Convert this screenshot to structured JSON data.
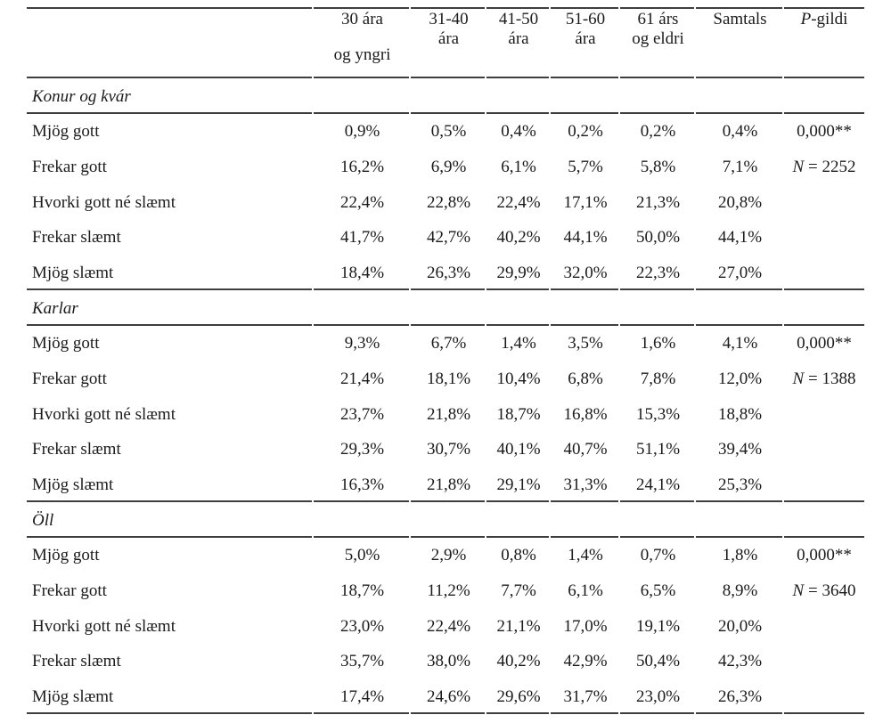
{
  "header": {
    "age_columns": [
      {
        "line1": "30 ára",
        "line2": "og yngri"
      },
      {
        "line1": "31-40",
        "line2": "ára"
      },
      {
        "line1": "41-50",
        "line2": "ára"
      },
      {
        "line1": "51-60",
        "line2": "ára"
      },
      {
        "line1": "61 árs",
        "line2": "og eldri"
      }
    ],
    "samtals": "Samtals",
    "p_italic": "P",
    "p_rest": "-gildi"
  },
  "sections": [
    {
      "title": "Konur og kvár",
      "p_value": "0,000**",
      "n_italic": "N",
      "n_rest": " = 2252",
      "rows": [
        {
          "label": "Mjög gott",
          "values": [
            "0,9%",
            "0,5%",
            "0,4%",
            "0,2%",
            "0,2%",
            "0,4%"
          ]
        },
        {
          "label": "Frekar gott",
          "values": [
            "16,2%",
            "6,9%",
            "6,1%",
            "5,7%",
            "5,8%",
            "7,1%"
          ]
        },
        {
          "label": "Hvorki gott né slæmt",
          "values": [
            "22,4%",
            "22,8%",
            "22,4%",
            "17,1%",
            "21,3%",
            "20,8%"
          ]
        },
        {
          "label": "Frekar slæmt",
          "values": [
            "41,7%",
            "42,7%",
            "40,2%",
            "44,1%",
            "50,0%",
            "44,1%"
          ]
        },
        {
          "label": "Mjög slæmt",
          "values": [
            "18,4%",
            "26,3%",
            "29,9%",
            "32,0%",
            "22,3%",
            "27,0%"
          ]
        }
      ]
    },
    {
      "title": "Karlar",
      "p_value": "0,000**",
      "n_italic": "N",
      "n_rest": " = 1388",
      "rows": [
        {
          "label": "Mjög gott",
          "values": [
            "9,3%",
            "6,7%",
            "1,4%",
            "3,5%",
            "1,6%",
            "4,1%"
          ]
        },
        {
          "label": "Frekar gott",
          "values": [
            "21,4%",
            "18,1%",
            "10,4%",
            "6,8%",
            "7,8%",
            "12,0%"
          ]
        },
        {
          "label": "Hvorki gott né slæmt",
          "values": [
            "23,7%",
            "21,8%",
            "18,7%",
            "16,8%",
            "15,3%",
            "18,8%"
          ]
        },
        {
          "label": "Frekar slæmt",
          "values": [
            "29,3%",
            "30,7%",
            "40,1%",
            "40,7%",
            "51,1%",
            "39,4%"
          ]
        },
        {
          "label": "Mjög slæmt",
          "values": [
            "16,3%",
            "21,8%",
            "29,1%",
            "31,3%",
            "24,1%",
            "25,3%"
          ]
        }
      ]
    },
    {
      "title": "Öll",
      "p_value": "0,000**",
      "n_italic": "N",
      "n_rest": " = 3640",
      "rows": [
        {
          "label": "Mjög gott",
          "values": [
            "5,0%",
            "2,9%",
            "0,8%",
            "1,4%",
            "0,7%",
            "1,8%"
          ]
        },
        {
          "label": "Frekar gott",
          "values": [
            "18,7%",
            "11,2%",
            "7,7%",
            "6,1%",
            "6,5%",
            "8,9%"
          ]
        },
        {
          "label": "Hvorki gott né slæmt",
          "values": [
            "23,0%",
            "22,4%",
            "21,1%",
            "17,0%",
            "19,1%",
            "20,0%"
          ]
        },
        {
          "label": "Frekar slæmt",
          "values": [
            "35,7%",
            "38,0%",
            "40,2%",
            "42,9%",
            "50,4%",
            "42,3%"
          ]
        },
        {
          "label": "Mjög slæmt",
          "values": [
            "17,4%",
            "24,6%",
            "29,6%",
            "31,7%",
            "23,0%",
            "26,3%"
          ]
        }
      ]
    }
  ]
}
